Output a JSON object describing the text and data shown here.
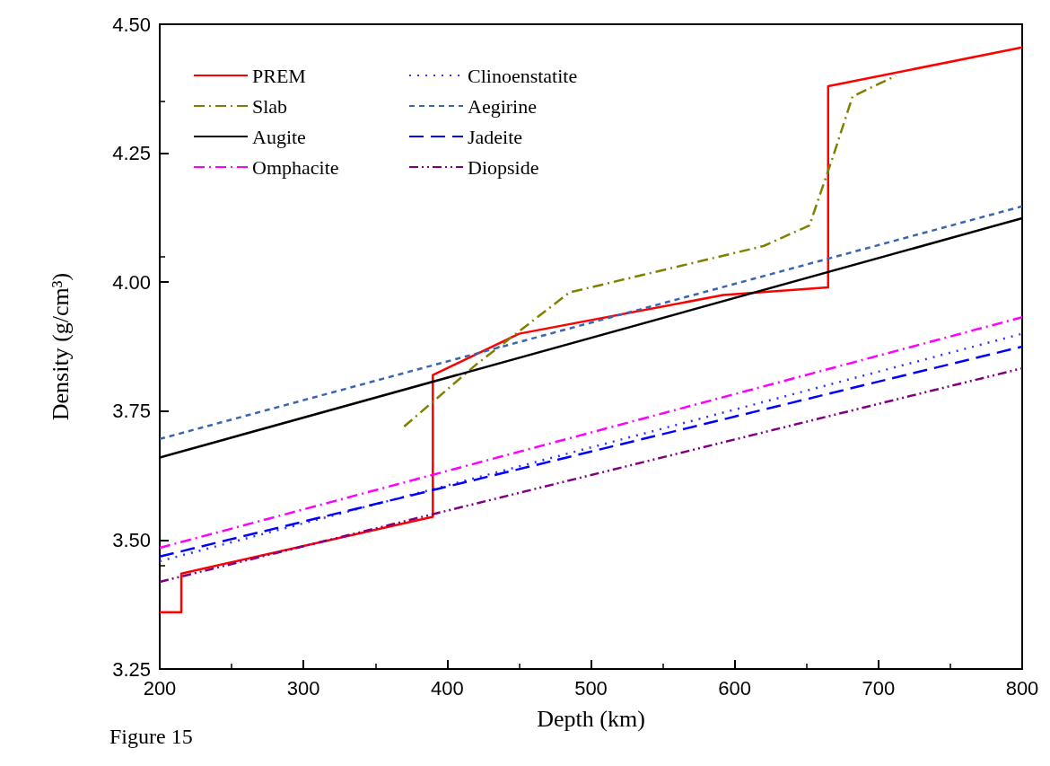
{
  "chart_data": {
    "type": "line",
    "xlabel": "Depth (km)",
    "ylabel": "Density (g/cm³)",
    "annotations": [
      "Figure 15"
    ],
    "xlim": [
      200,
      800
    ],
    "xticks": [
      200,
      300,
      400,
      500,
      600,
      700,
      800
    ],
    "ylim": [
      3.25,
      4.5
    ],
    "yticks": [
      {
        "value": 3.25,
        "label": "3.25"
      },
      {
        "value": 3.5,
        "label": "3.50"
      },
      {
        "value": 3.75,
        "label": "3.75"
      },
      {
        "value": 4.0,
        "label": "4.00"
      },
      {
        "value": 4.25,
        "label": "4.25"
      },
      {
        "value": 4.5,
        "label": "4.50"
      }
    ],
    "grid": false,
    "legend": "top left",
    "marker": "none",
    "series": [
      {
        "name": "PREM",
        "color": "#ff0000",
        "line_style": "solid",
        "x": [
          200,
          215,
          215,
          390,
          390,
          450,
          592,
          665,
          665,
          800
        ],
        "values": [
          3.36,
          3.36,
          3.435,
          3.545,
          3.82,
          3.9,
          3.975,
          3.99,
          4.38,
          4.455
        ]
      },
      {
        "name": "Slab",
        "color": "#808000",
        "line_style": "dashdot",
        "x": [
          370,
          420,
          485,
          560,
          620,
          652,
          668,
          682,
          712
        ],
        "values": [
          3.72,
          3.84,
          3.98,
          4.03,
          4.07,
          4.11,
          4.24,
          4.36,
          4.4
        ]
      },
      {
        "name": "Augite",
        "color": "#000000",
        "line_style": "solid",
        "x": [
          200,
          800
        ],
        "values": [
          3.66,
          4.124
        ]
      },
      {
        "name": "Omphacite",
        "color": "#ff00ff",
        "line_style": "dashdot",
        "x": [
          200,
          800
        ],
        "values": [
          3.485,
          3.932
        ]
      },
      {
        "name": "Clinoenstatite",
        "color": "#3333ff",
        "line_style": "dotted",
        "x": [
          200,
          800
        ],
        "values": [
          3.459,
          3.9
        ]
      },
      {
        "name": "Aegirine",
        "color": "#3a66b0",
        "line_style": "dashed",
        "x": [
          200,
          800
        ],
        "values": [
          3.696,
          4.147
        ]
      },
      {
        "name": "Jadeite",
        "color": "#0000ff",
        "line_style": "longdash",
        "x": [
          200,
          800
        ],
        "values": [
          3.468,
          3.875
        ]
      },
      {
        "name": "Diopside",
        "color": "#800080",
        "line_style": "dashdotdot",
        "x": [
          200,
          800
        ],
        "values": [
          3.419,
          3.833
        ]
      }
    ]
  }
}
